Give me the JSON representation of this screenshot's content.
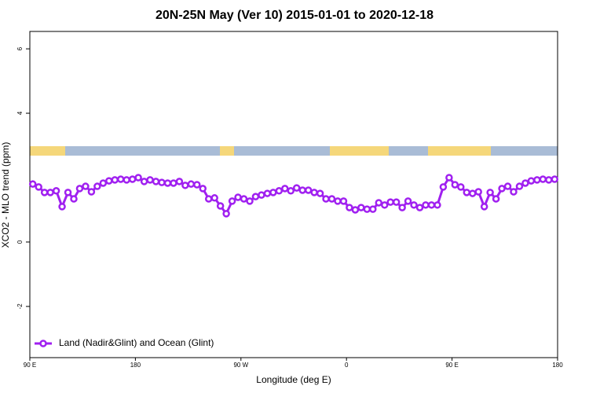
{
  "chart_data": {
    "type": "line",
    "title": "20N-25N May (Ver 10)   2015-01-01 to 2020-12-18",
    "x_label": "Longitude (deg E)",
    "y_label": "XCO2 - MLO trend (ppm)",
    "x": [
      92.5,
      97.5,
      102.5,
      107.5,
      112.5,
      117.5,
      122.5,
      127.5,
      132.5,
      137.5,
      142.5,
      147.5,
      152.5,
      157.5,
      162.5,
      167.5,
      172.5,
      177.5,
      182.5,
      187.5,
      192.5,
      197.5,
      202.5,
      207.5,
      212.5,
      217.5,
      222.5,
      227.5,
      232.5,
      237.5,
      242.5,
      247.5,
      252.5,
      257.5,
      262.5,
      267.5,
      272.5,
      277.5,
      282.5,
      287.5,
      292.5,
      297.5,
      302.5,
      307.5,
      312.5,
      317.5,
      322.5,
      327.5,
      332.5,
      337.5,
      342.5,
      347.5,
      352.5,
      357.5,
      362.5,
      367.5,
      372.5,
      377.5,
      382.5,
      387.5,
      392.5,
      397.5,
      402.5,
      407.5,
      412.5,
      417.5,
      422.5,
      427.5,
      432.5,
      437.5,
      442.5,
      447.5,
      452.5,
      457.5,
      462.5,
      467.5,
      472.5,
      477.5,
      482.5,
      487.5,
      492.5,
      497.5,
      502.5,
      507.5,
      512.5,
      517.5,
      522.5,
      527.5,
      532.5,
      537.5
    ],
    "series": [
      {
        "name": "Land (Nadir&Glint) and Ocean (Glint)",
        "color": "#a020f0",
        "values": [
          1.8,
          1.71,
          1.54,
          1.54,
          1.59,
          1.1,
          1.54,
          1.34,
          1.66,
          1.73,
          1.56,
          1.73,
          1.83,
          1.9,
          1.93,
          1.95,
          1.93,
          1.95,
          2.0,
          1.88,
          1.93,
          1.88,
          1.85,
          1.83,
          1.83,
          1.88,
          1.76,
          1.8,
          1.78,
          1.66,
          1.34,
          1.37,
          1.12,
          0.88,
          1.27,
          1.39,
          1.34,
          1.27,
          1.41,
          1.46,
          1.51,
          1.54,
          1.59,
          1.66,
          1.59,
          1.68,
          1.61,
          1.61,
          1.54,
          1.51,
          1.34,
          1.34,
          1.27,
          1.27,
          1.07,
          1.0,
          1.07,
          1.02,
          1.02,
          1.22,
          1.15,
          1.24,
          1.24,
          1.07,
          1.27,
          1.15,
          1.07,
          1.15,
          1.15,
          1.15,
          1.71,
          2.0,
          1.78,
          1.71,
          1.54,
          1.51,
          1.56,
          1.1,
          1.54,
          1.34,
          1.66,
          1.73,
          1.56,
          1.73,
          1.83,
          1.9,
          1.93,
          1.95,
          1.93,
          1.95
        ]
      }
    ],
    "xlim": [
      90,
      540
    ],
    "xticks": [
      {
        "value": 90,
        "label": "90 E"
      },
      {
        "value": 180,
        "label": "180"
      },
      {
        "value": 270,
        "label": "90 W"
      },
      {
        "value": 360,
        "label": "0"
      },
      {
        "value": 450,
        "label": "90 E"
      },
      {
        "value": 540,
        "label": "180"
      }
    ],
    "ylim": [
      -3.59,
      6.54
    ],
    "yticks": [
      -2,
      0,
      4,
      6
    ],
    "legend": "bottom-left"
  }
}
